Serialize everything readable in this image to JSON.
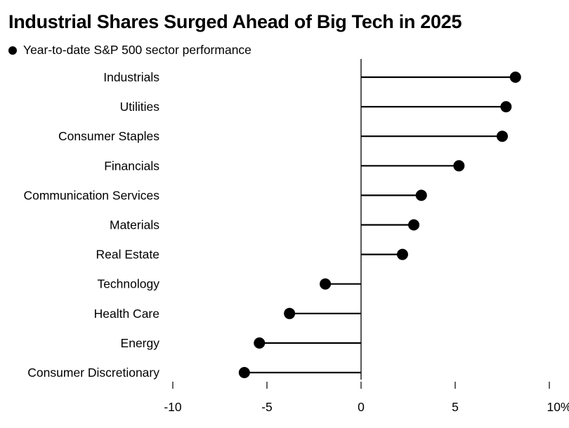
{
  "chart_data": {
    "type": "lollipop",
    "title": "Industrial Shares Surged Ahead of Big Tech in 2025",
    "legend": [
      {
        "label": "Year-to-date S&P 500 sector performance",
        "marker": "filled-circle"
      }
    ],
    "categories": [
      "Industrials",
      "Utilities",
      "Consumer Staples",
      "Financials",
      "Communication Services",
      "Materials",
      "Real Estate",
      "Technology",
      "Health Care",
      "Energy",
      "Consumer Discretionary"
    ],
    "values": [
      8.2,
      7.7,
      7.5,
      5.2,
      3.2,
      2.8,
      2.2,
      -1.9,
      -3.8,
      -5.4,
      -6.2
    ],
    "xlim": [
      -10,
      10
    ],
    "xticks": [
      -10,
      -5,
      0,
      5,
      10
    ],
    "xtick_labels": [
      "-10",
      "-5",
      "0",
      "5",
      "10%"
    ],
    "xlabel": "",
    "ylabel": "",
    "grid": false,
    "colors": {
      "marker": "#000000",
      "stem": "#000000",
      "axis": "#000000"
    }
  }
}
